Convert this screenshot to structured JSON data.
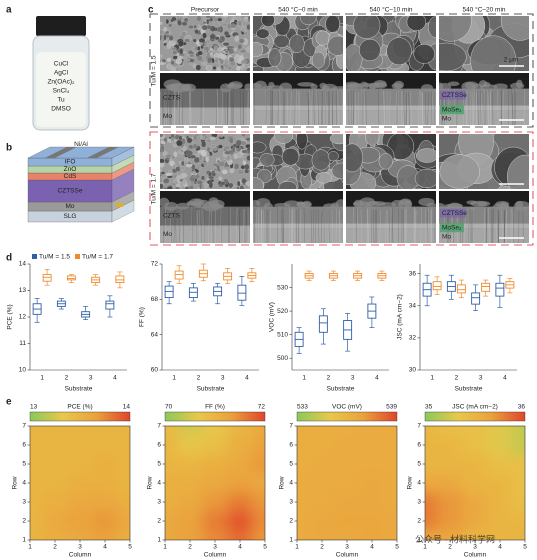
{
  "panel_labels": [
    "a",
    "b",
    "c",
    "d",
    "e"
  ],
  "vial": {
    "labels": [
      "CuCl",
      "AgCl",
      "Zn(OAc)₂",
      "SnCl₄",
      "Tu",
      "DMSO"
    ]
  },
  "device": {
    "layers": [
      "Ni/Al",
      "IFO",
      "ZnO",
      "CdS",
      "CZTSSe",
      "Mo",
      "SLG"
    ]
  },
  "sem": {
    "columns": [
      "Precursor",
      "540 °C–0 min",
      "540 °C–10 min",
      "540 °C–20 min"
    ],
    "rows": [
      "Tu/M = 1.5",
      "Tu/M = 1.7"
    ],
    "scale_bar": "2 μm",
    "precursor_labels": [
      "CZTS",
      "Mo"
    ],
    "annealed_labels": [
      "CZTSSe",
      "MoSe₂",
      "Mo"
    ]
  },
  "watermark": "公众号 · 材料科学网",
  "chart_data": [
    {
      "type": "box",
      "ylabel": "PCE (%)",
      "xlabel": "Substrate",
      "categories": [
        "1",
        "2",
        "3",
        "4"
      ],
      "ylim": [
        10,
        14
      ],
      "yticks": [
        10,
        11,
        12,
        13,
        14
      ],
      "series": [
        {
          "name": "Tu/M = 1.5",
          "color": "#2f5fa8",
          "boxes": [
            {
              "min": 11.8,
              "q1": 12.1,
              "median": 12.3,
              "q3": 12.5,
              "max": 12.7
            },
            {
              "min": 12.3,
              "q1": 12.4,
              "median": 12.5,
              "q3": 12.6,
              "max": 12.7
            },
            {
              "min": 11.9,
              "q1": 12.0,
              "median": 12.1,
              "q3": 12.2,
              "max": 12.4
            },
            {
              "min": 12.0,
              "q1": 12.3,
              "median": 12.5,
              "q3": 12.6,
              "max": 12.8
            }
          ]
        },
        {
          "name": "Tu/M = 1.7",
          "color": "#f08a2c",
          "boxes": [
            {
              "min": 13.2,
              "q1": 13.35,
              "median": 13.5,
              "q3": 13.6,
              "max": 13.8
            },
            {
              "min": 13.3,
              "q1": 13.4,
              "median": 13.45,
              "q3": 13.55,
              "max": 13.6
            },
            {
              "min": 13.2,
              "q1": 13.3,
              "median": 13.4,
              "q3": 13.5,
              "max": 13.6
            },
            {
              "min": 13.1,
              "q1": 13.3,
              "median": 13.4,
              "q3": 13.55,
              "max": 13.7
            }
          ]
        }
      ]
    },
    {
      "type": "box",
      "ylabel": "FF (%)",
      "xlabel": "Substrate",
      "categories": [
        "1",
        "2",
        "3",
        "4"
      ],
      "ylim": [
        60,
        72
      ],
      "yticks": [
        60,
        64,
        68,
        72
      ],
      "series": [
        {
          "color": "#2f5fa8",
          "boxes": [
            {
              "min": 67.5,
              "q1": 68.2,
              "median": 68.9,
              "q3": 69.5,
              "max": 70.0
            },
            {
              "min": 67.8,
              "q1": 68.2,
              "median": 68.8,
              "q3": 69.3,
              "max": 69.8
            },
            {
              "min": 67.5,
              "q1": 68.4,
              "median": 68.9,
              "q3": 69.4,
              "max": 69.8
            },
            {
              "min": 67.3,
              "q1": 67.9,
              "median": 68.7,
              "q3": 69.6,
              "max": 70.6
            }
          ]
        },
        {
          "color": "#f08a2c",
          "boxes": [
            {
              "min": 69.8,
              "q1": 70.3,
              "median": 70.8,
              "q3": 71.2,
              "max": 71.8
            },
            {
              "min": 70.1,
              "q1": 70.5,
              "median": 70.9,
              "q3": 71.3,
              "max": 72.0
            },
            {
              "min": 69.8,
              "q1": 70.2,
              "median": 70.6,
              "q3": 71.0,
              "max": 71.5
            },
            {
              "min": 70.0,
              "q1": 70.4,
              "median": 70.7,
              "q3": 71.0,
              "max": 71.5
            }
          ]
        }
      ]
    },
    {
      "type": "box",
      "ylabel": "VOC (mV)",
      "xlabel": "Substrate",
      "categories": [
        "1",
        "2",
        "3",
        "4"
      ],
      "ylim": [
        495,
        540
      ],
      "yticks": [
        500,
        510,
        520,
        530
      ],
      "series": [
        {
          "color": "#2f5fa8",
          "boxes": [
            {
              "min": 502,
              "q1": 505,
              "median": 508,
              "q3": 511,
              "max": 513
            },
            {
              "min": 506,
              "q1": 511,
              "median": 515,
              "q3": 518,
              "max": 521
            },
            {
              "min": 503,
              "q1": 508,
              "median": 512,
              "q3": 516,
              "max": 519
            },
            {
              "min": 513,
              "q1": 517,
              "median": 520,
              "q3": 523,
              "max": 526
            }
          ]
        },
        {
          "color": "#f08a2c",
          "boxes": [
            {
              "min": 533,
              "q1": 534,
              "median": 535,
              "q3": 536,
              "max": 537
            },
            {
              "min": 533,
              "q1": 534,
              "median": 535,
              "q3": 536,
              "max": 537
            },
            {
              "min": 533,
              "q1": 534,
              "median": 535,
              "q3": 536,
              "max": 537
            },
            {
              "min": 533,
              "q1": 534,
              "median": 535,
              "q3": 536,
              "max": 537
            }
          ]
        }
      ]
    },
    {
      "type": "box",
      "ylabel": "JSC (mA cm−2)",
      "xlabel": "Substrate",
      "categories": [
        "1",
        "2",
        "3",
        "4"
      ],
      "ylim": [
        30,
        36.6
      ],
      "yticks": [
        30,
        32,
        34,
        36
      ],
      "series": [
        {
          "color": "#2f5fa8",
          "boxes": [
            {
              "min": 34.0,
              "q1": 34.6,
              "median": 35.0,
              "q3": 35.4,
              "max": 35.9
            },
            {
              "min": 34.4,
              "q1": 34.9,
              "median": 35.2,
              "q3": 35.5,
              "max": 35.9
            },
            {
              "min": 33.7,
              "q1": 34.1,
              "median": 34.5,
              "q3": 34.8,
              "max": 35.3
            },
            {
              "min": 33.9,
              "q1": 34.6,
              "median": 35.1,
              "q3": 35.4,
              "max": 35.9
            }
          ]
        },
        {
          "color": "#f08a2c",
          "boxes": [
            {
              "min": 34.7,
              "q1": 35.0,
              "median": 35.2,
              "q3": 35.5,
              "max": 35.8
            },
            {
              "min": 34.5,
              "q1": 34.8,
              "median": 35.0,
              "q3": 35.3,
              "max": 35.6
            },
            {
              "min": 34.6,
              "q1": 34.9,
              "median": 35.2,
              "q3": 35.4,
              "max": 35.6
            },
            {
              "min": 34.8,
              "q1": 35.1,
              "median": 35.3,
              "q3": 35.5,
              "max": 35.7
            }
          ]
        }
      ]
    },
    {
      "type": "heatmap",
      "title": "PCE (%)",
      "clim": [
        13,
        14
      ],
      "colors": [
        "#8cc85a",
        "#e8c84a",
        "#eaa13c",
        "#e0452c"
      ],
      "xlabel": "Column",
      "ylabel": "Row",
      "xlim": [
        1,
        5
      ],
      "xticks": [
        1,
        2,
        3,
        4,
        5
      ],
      "ylim": [
        1,
        7
      ],
      "yticks": [
        1,
        2,
        3,
        4,
        5,
        6,
        7
      ],
      "values": [
        [
          13.5,
          13.55,
          13.6,
          13.65,
          13.55
        ],
        [
          13.5,
          13.6,
          13.65,
          13.7,
          13.6
        ],
        [
          13.5,
          13.55,
          13.6,
          13.6,
          13.55
        ],
        [
          13.5,
          13.5,
          13.55,
          13.55,
          13.5
        ],
        [
          13.5,
          13.5,
          13.5,
          13.55,
          13.5
        ],
        [
          13.5,
          13.5,
          13.5,
          13.5,
          13.5
        ],
        [
          13.5,
          13.5,
          13.5,
          13.5,
          13.5
        ]
      ]
    },
    {
      "type": "heatmap",
      "title": "FF (%)",
      "clim": [
        70,
        72
      ],
      "colors": [
        "#8cc85a",
        "#e8c84a",
        "#eaa13c",
        "#e0452c"
      ],
      "xlabel": "Column",
      "ylabel": "Row",
      "xlim": [
        1,
        5
      ],
      "xticks": [
        1,
        2,
        3,
        4,
        5
      ],
      "ylim": [
        1,
        7
      ],
      "yticks": [
        1,
        2,
        3,
        4,
        5,
        6,
        7
      ],
      "values": [
        [
          71.2,
          71.3,
          71.5,
          71.7,
          71.4
        ],
        [
          71.2,
          71.3,
          71.6,
          71.9,
          71.5
        ],
        [
          71.1,
          71.2,
          71.4,
          71.6,
          71.4
        ],
        [
          71.1,
          71.1,
          71.2,
          71.3,
          71.2
        ],
        [
          71.0,
          71.0,
          71.1,
          71.2,
          71.4
        ],
        [
          71.0,
          70.7,
          70.8,
          71.1,
          71.3
        ],
        [
          70.9,
          70.5,
          70.7,
          71.0,
          71.2
        ]
      ]
    },
    {
      "type": "heatmap",
      "title": "VOC (mV)",
      "clim": [
        533,
        539
      ],
      "colors": [
        "#8cc85a",
        "#e8c84a",
        "#eaa13c",
        "#e0452c"
      ],
      "xlabel": "Column",
      "ylabel": "Row",
      "xlim": [
        1,
        5
      ],
      "xticks": [
        1,
        2,
        3,
        4,
        5
      ],
      "ylim": [
        1,
        7
      ],
      "yticks": [
        1,
        2,
        3,
        4,
        5,
        6,
        7
      ],
      "values": [
        [
          536.5,
          536.6,
          536.6,
          536.7,
          536.6
        ],
        [
          536.5,
          536.6,
          536.7,
          536.7,
          536.6
        ],
        [
          536.5,
          536.5,
          536.6,
          536.6,
          536.5
        ],
        [
          536.5,
          536.5,
          536.5,
          536.6,
          536.5
        ],
        [
          536.4,
          536.5,
          536.5,
          536.5,
          536.5
        ],
        [
          536.4,
          536.4,
          536.5,
          536.5,
          536.5
        ],
        [
          536.4,
          536.4,
          536.4,
          536.5,
          536.5
        ]
      ]
    },
    {
      "type": "heatmap",
      "title": "JSC (mA cm−2)",
      "clim": [
        35,
        36
      ],
      "colors": [
        "#8cc85a",
        "#e8c84a",
        "#eaa13c",
        "#e0452c"
      ],
      "xlabel": "Column",
      "ylabel": "Row",
      "xlim": [
        1,
        5
      ],
      "xticks": [
        1,
        2,
        3,
        4,
        5
      ],
      "ylim": [
        1,
        7
      ],
      "yticks": [
        1,
        2,
        3,
        4,
        5,
        6,
        7
      ],
      "values": [
        [
          35.6,
          35.6,
          35.5,
          35.5,
          35.5
        ],
        [
          35.8,
          35.7,
          35.6,
          35.5,
          35.5
        ],
        [
          35.8,
          35.7,
          35.6,
          35.5,
          35.4
        ],
        [
          35.6,
          35.6,
          35.5,
          35.5,
          35.4
        ],
        [
          35.5,
          35.5,
          35.5,
          35.4,
          35.4
        ],
        [
          35.5,
          35.5,
          35.4,
          35.3,
          35.2
        ],
        [
          35.5,
          35.4,
          35.4,
          35.3,
          35.2
        ]
      ]
    }
  ]
}
